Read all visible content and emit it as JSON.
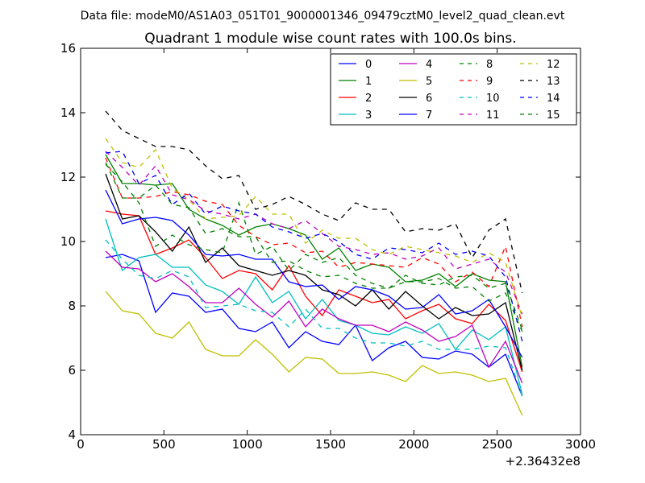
{
  "chart_data": {
    "type": "line",
    "suptitle": "Data file: modeM0/AS1A03_051T01_9000001346_09479cztM0_level2_quad_clean.evt",
    "title": "Quadrant 1 module wise count rates with 100.0s bins.",
    "xlabel": "",
    "ylabel": "",
    "xlim": [
      0,
      3000
    ],
    "ylim": [
      4,
      16
    ],
    "x_offset_label": "+2.36432e8",
    "xticks": [
      "0",
      "500",
      "1000",
      "1500",
      "2000",
      "2500",
      "3000"
    ],
    "yticks": [
      "4",
      "6",
      "8",
      "10",
      "12",
      "14",
      "16"
    ],
    "legend_position": "top-right",
    "x": [
      150,
      250,
      350,
      450,
      550,
      650,
      750,
      850,
      950,
      1050,
      1150,
      1250,
      1350,
      1450,
      1550,
      1650,
      1750,
      1850,
      1950,
      2050,
      2150,
      2250,
      2350,
      2450,
      2550,
      2650
    ],
    "series": [
      {
        "name": "0",
        "color": "#0000ff",
        "dash": "solid",
        "values": [
          9.5,
          9.6,
          9.4,
          7.8,
          8.4,
          8.3,
          7.8,
          7.9,
          7.3,
          7.2,
          7.5,
          6.7,
          7.2,
          6.9,
          6.8,
          7.4,
          6.3,
          6.7,
          6.9,
          6.4,
          6.35,
          6.6,
          6.5,
          6.1,
          6.5,
          5.2
        ]
      },
      {
        "name": "1",
        "color": "#008000",
        "dash": "solid",
        "values": [
          12.7,
          11.8,
          11.8,
          11.75,
          11.8,
          11.0,
          10.7,
          10.5,
          10.2,
          10.45,
          10.55,
          10.4,
          10.2,
          9.45,
          9.8,
          9.1,
          9.3,
          9.2,
          8.75,
          8.8,
          9.0,
          8.6,
          9.0,
          8.8,
          8.75,
          6.1
        ]
      },
      {
        "name": "2",
        "color": "#ff0000",
        "dash": "solid",
        "values": [
          10.95,
          10.85,
          10.8,
          9.6,
          9.8,
          10.05,
          9.5,
          8.85,
          9.1,
          9.0,
          8.5,
          9.25,
          8.3,
          7.7,
          8.5,
          8.3,
          8.1,
          8.2,
          7.6,
          7.85,
          8.05,
          7.6,
          7.45,
          8.05,
          7.55,
          5.95
        ]
      },
      {
        "name": "3",
        "color": "#00bfbf",
        "dash": "solid",
        "values": [
          10.7,
          9.1,
          9.5,
          9.6,
          9.2,
          9.2,
          8.65,
          8.45,
          8.05,
          8.9,
          8.1,
          8.45,
          7.6,
          8.2,
          7.55,
          7.4,
          7.15,
          7.1,
          7.35,
          7.15,
          7.45,
          6.65,
          7.25,
          6.95,
          7.35,
          5.25
        ]
      },
      {
        "name": "4",
        "color": "#bf00bf",
        "dash": "solid",
        "values": [
          9.7,
          9.2,
          9.15,
          8.75,
          9.0,
          8.6,
          8.1,
          8.1,
          8.55,
          8.05,
          7.65,
          8.15,
          7.35,
          7.9,
          7.6,
          7.4,
          7.4,
          7.2,
          7.5,
          7.25,
          6.9,
          7.05,
          7.4,
          6.1,
          6.9,
          5.6
        ]
      },
      {
        "name": "5",
        "color": "#bfbf00",
        "dash": "solid",
        "values": [
          8.45,
          7.85,
          7.75,
          7.15,
          7.0,
          7.5,
          6.65,
          6.45,
          6.45,
          6.95,
          6.5,
          5.95,
          6.4,
          6.35,
          5.9,
          5.9,
          5.95,
          5.85,
          5.65,
          6.15,
          5.9,
          5.95,
          5.85,
          5.65,
          5.75,
          4.6
        ]
      },
      {
        "name": "6",
        "color": "#000000",
        "dash": "solid",
        "values": [
          12.1,
          10.7,
          10.8,
          10.3,
          9.7,
          10.45,
          9.35,
          9.8,
          9.25,
          9.1,
          8.95,
          9.1,
          8.95,
          8.5,
          8.35,
          8.0,
          8.5,
          7.9,
          8.45,
          8.0,
          7.6,
          7.95,
          7.7,
          7.75,
          8.1,
          6.0
        ]
      },
      {
        "name": "7",
        "color": "#0000ff",
        "dash": "solid",
        "values": [
          11.6,
          10.55,
          10.7,
          10.75,
          10.65,
          10.2,
          9.6,
          9.55,
          9.6,
          9.45,
          9.45,
          8.75,
          8.6,
          8.65,
          8.2,
          8.6,
          8.5,
          8.3,
          7.9,
          7.95,
          8.35,
          7.75,
          7.85,
          8.2,
          7.35,
          6.4
        ]
      },
      {
        "name": "8",
        "color": "#008000",
        "dash": "dashed",
        "values": [
          12.4,
          11.85,
          11.2,
          9.85,
          10.2,
          9.9,
          9.75,
          9.65,
          11.2,
          9.6,
          9.85,
          9.1,
          9.6,
          9.35,
          9.5,
          8.95,
          8.7,
          8.55,
          8.95,
          8.7,
          8.65,
          8.9,
          8.95,
          8.55,
          8.7,
          7.25
        ]
      },
      {
        "name": "9",
        "color": "#ff0000",
        "dash": "dashed",
        "values": [
          12.6,
          11.35,
          11.35,
          11.4,
          11.55,
          11.45,
          11.25,
          11.15,
          10.5,
          10.15,
          9.9,
          9.95,
          9.65,
          9.7,
          9.2,
          9.35,
          9.3,
          9.25,
          9.2,
          9.5,
          9.3,
          8.75,
          9.05,
          8.6,
          9.85,
          7.35
        ]
      },
      {
        "name": "10",
        "color": "#00bfbf",
        "dash": "dashed",
        "values": [
          10.05,
          9.45,
          8.95,
          8.85,
          9.1,
          8.9,
          7.95,
          8.0,
          8.05,
          7.85,
          7.8,
          7.35,
          7.9,
          7.3,
          7.3,
          7.0,
          6.85,
          6.85,
          6.75,
          6.9,
          6.65,
          6.65,
          6.65,
          6.75,
          6.7,
          5.2
        ]
      },
      {
        "name": "11",
        "color": "#bf00bf",
        "dash": "dashed",
        "values": [
          12.8,
          12.3,
          11.75,
          12.35,
          11.45,
          11.3,
          10.95,
          10.85,
          10.7,
          10.85,
          10.55,
          10.4,
          10.65,
          10.25,
          9.85,
          9.75,
          9.6,
          9.65,
          9.45,
          9.55,
          9.8,
          9.15,
          9.3,
          9.45,
          9.05,
          7.75
        ]
      },
      {
        "name": "12",
        "color": "#bfbf00",
        "dash": "dashed",
        "values": [
          13.2,
          12.45,
          12.3,
          12.85,
          11.65,
          11.3,
          10.7,
          10.75,
          10.8,
          11.4,
          10.85,
          10.85,
          9.95,
          10.35,
          10.1,
          10.1,
          9.75,
          9.6,
          9.85,
          9.75,
          9.65,
          9.55,
          9.35,
          9.65,
          9.35,
          7.65
        ]
      },
      {
        "name": "13",
        "color": "#000000",
        "dash": "dashed",
        "values": [
          14.05,
          13.45,
          13.2,
          12.95,
          12.95,
          12.85,
          12.35,
          11.95,
          12.05,
          11.0,
          11.15,
          11.4,
          11.15,
          10.85,
          10.65,
          11.2,
          11.0,
          11.0,
          10.3,
          10.4,
          10.35,
          10.55,
          9.5,
          10.35,
          10.7,
          8.4
        ]
      },
      {
        "name": "14",
        "color": "#0000ff",
        "dash": "dashed",
        "values": [
          12.75,
          12.8,
          11.8,
          12.05,
          11.15,
          11.5,
          10.85,
          11.1,
          10.95,
          10.85,
          10.45,
          10.3,
          10.1,
          10.25,
          10.0,
          9.6,
          9.45,
          9.8,
          9.75,
          9.65,
          9.95,
          9.6,
          9.7,
          9.55,
          8.9,
          6.9
        ]
      },
      {
        "name": "15",
        "color": "#008000",
        "dash": "dashed",
        "values": [
          12.45,
          11.35,
          11.35,
          11.75,
          11.15,
          11.05,
          10.25,
          10.4,
          10.15,
          10.15,
          9.35,
          9.4,
          9.1,
          8.9,
          8.95,
          8.7,
          8.55,
          8.55,
          8.75,
          8.75,
          8.85,
          8.55,
          8.6,
          8.15,
          8.4,
          7.2
        ]
      }
    ]
  }
}
